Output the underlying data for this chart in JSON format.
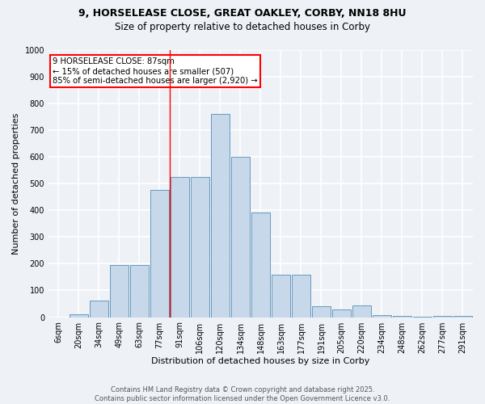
{
  "title_line1": "9, HORSELEASE CLOSE, GREAT OAKLEY, CORBY, NN18 8HU",
  "title_line2": "Size of property relative to detached houses in Corby",
  "xlabel": "Distribution of detached houses by size in Corby",
  "ylabel": "Number of detached properties",
  "categories": [
    "6sqm",
    "20sqm",
    "34sqm",
    "49sqm",
    "63sqm",
    "77sqm",
    "91sqm",
    "106sqm",
    "120sqm",
    "134sqm",
    "148sqm",
    "163sqm",
    "177sqm",
    "191sqm",
    "205sqm",
    "220sqm",
    "234sqm",
    "248sqm",
    "262sqm",
    "277sqm",
    "291sqm"
  ],
  "values": [
    0,
    12,
    62,
    195,
    195,
    475,
    525,
    525,
    760,
    600,
    390,
    160,
    160,
    40,
    28,
    45,
    8,
    5,
    2,
    5,
    5
  ],
  "bar_color": "#c8d8eb",
  "bar_edge_color": "#6699bb",
  "vline_x_index": 5.5,
  "vline_color": "red",
  "annotation_text": "9 HORSELEASE CLOSE: 87sqm\n← 15% of detached houses are smaller (507)\n85% of semi-detached houses are larger (2,920) →",
  "annotation_box_color": "white",
  "annotation_box_edge": "red",
  "footer_line1": "Contains HM Land Registry data © Crown copyright and database right 2025.",
  "footer_line2": "Contains public sector information licensed under the Open Government Licence v3.0.",
  "ylim": [
    0,
    1000
  ],
  "yticks": [
    0,
    100,
    200,
    300,
    400,
    500,
    600,
    700,
    800,
    900,
    1000
  ],
  "bg_color": "#eef2f7",
  "grid_color": "white",
  "title_fontsize": 9,
  "subtitle_fontsize": 8.5,
  "axis_label_fontsize": 8,
  "tick_fontsize": 7,
  "footer_fontsize": 6
}
